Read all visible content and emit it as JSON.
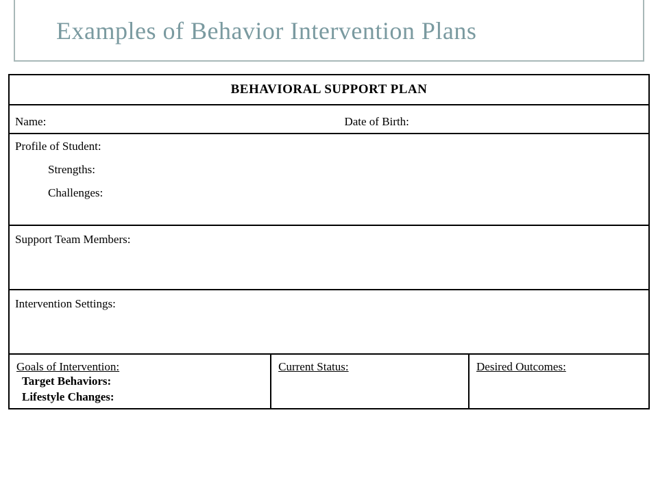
{
  "slide": {
    "title": "Examples of Behavior Intervention Plans",
    "title_color": "#7a9aa0",
    "header_border_color": "#a8b8b8",
    "title_fontsize": 36
  },
  "form": {
    "title": "BEHAVIORAL SUPPORT PLAN",
    "border_color": "#000000",
    "background": "#ffffff",
    "name_label": "Name:",
    "dob_label": "Date of Birth:",
    "profile_label": "Profile of Student:",
    "strengths_label": "Strengths:",
    "challenges_label": "Challenges:",
    "support_label": "Support Team Members:",
    "intervention_label": "Intervention Settings:",
    "goals": {
      "col1_header": "Goals of Intervention:",
      "col1_sub1": "Target Behaviors:",
      "col1_sub2": "Lifestyle Changes:",
      "col2_header": "Current Status:",
      "col3_header": "Desired Outcomes:"
    },
    "label_fontsize": 17,
    "title_fontsize": 19
  }
}
